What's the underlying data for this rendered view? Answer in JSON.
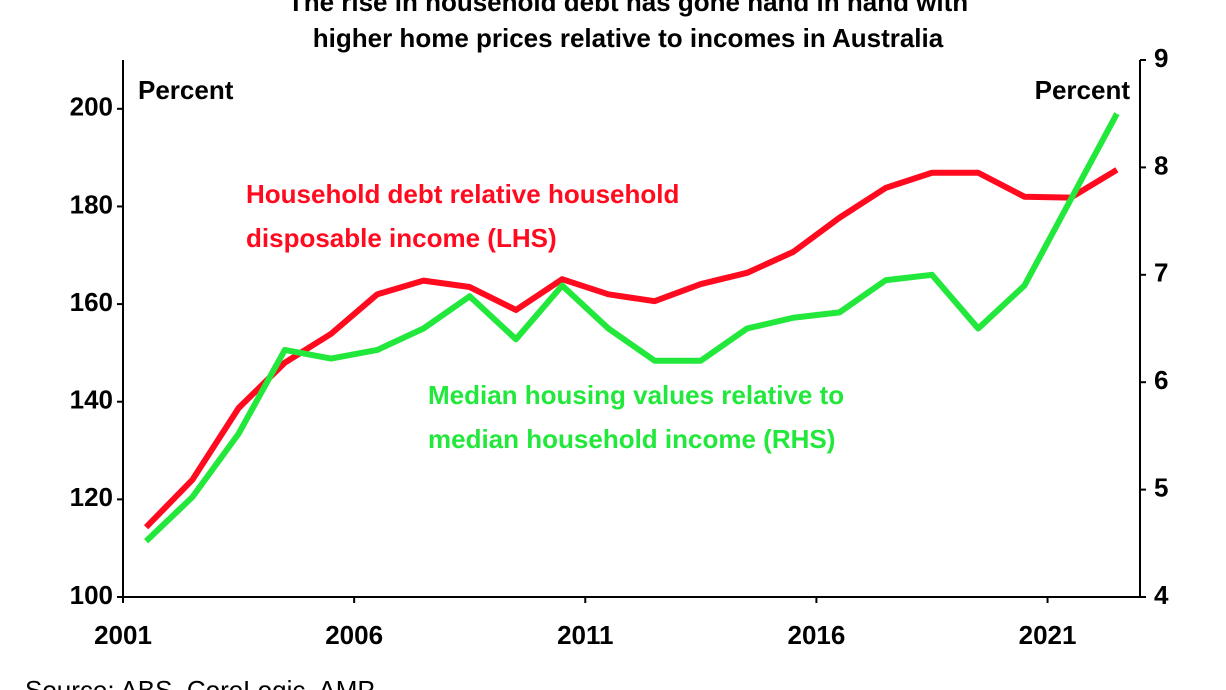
{
  "chart_data": {
    "type": "line",
    "title": [
      "The rise in household debt has gone hand in hand with",
      "higher home prices relative to incomes in Australia"
    ],
    "source": "Source: ABS, CoreLogic, AMP",
    "y_unit_label": "Percent",
    "y2_unit_label": "Percent",
    "x": [
      2001.5,
      2002.5,
      2003.5,
      2004.5,
      2005.5,
      2006.5,
      2007.5,
      2008.5,
      2009.5,
      2010.5,
      2011.5,
      2012.5,
      2013.5,
      2014.5,
      2015.5,
      2016.5,
      2017.5,
      2018.5,
      2019.5,
      2020.5,
      2021.5,
      2022.5
    ],
    "series": [
      {
        "name": "Household debt relative household disposable income (LHS)",
        "color": "#ff0a1e",
        "axis": "y",
        "label_lines": [
          "Household debt relative household",
          "disposable income (LHS)"
        ],
        "values": [
          114.3,
          124,
          138.7,
          148,
          153.9,
          162,
          164.8,
          163.5,
          158.8,
          165.1,
          162,
          160.6,
          164.1,
          166.4,
          170.7,
          177.7,
          183.8,
          186.9,
          186.9,
          182,
          181.8,
          187.5
        ]
      },
      {
        "name": "Median housing values relative to median household income (RHS)",
        "color": "#22e83c",
        "axis": "y2",
        "label_lines": [
          "Median housing values relative to",
          "median household income (RHS)"
        ],
        "values": [
          4.52,
          4.93,
          5.52,
          6.3,
          6.22,
          6.3,
          6.5,
          6.8,
          6.4,
          6.9,
          6.5,
          6.2,
          6.2,
          6.5,
          6.6,
          6.65,
          6.95,
          7.0,
          6.5,
          6.9,
          7.7,
          8.5
        ]
      }
    ],
    "xlim": [
      2001,
      2023
    ],
    "xticks": [
      2001,
      2006,
      2011,
      2016,
      2021
    ],
    "ylim": [
      100,
      210
    ],
    "yticks": [
      100,
      120,
      140,
      160,
      180,
      200
    ],
    "y2lim": [
      4,
      9
    ],
    "y2ticks": [
      4,
      5,
      6,
      7,
      8,
      9
    ]
  }
}
